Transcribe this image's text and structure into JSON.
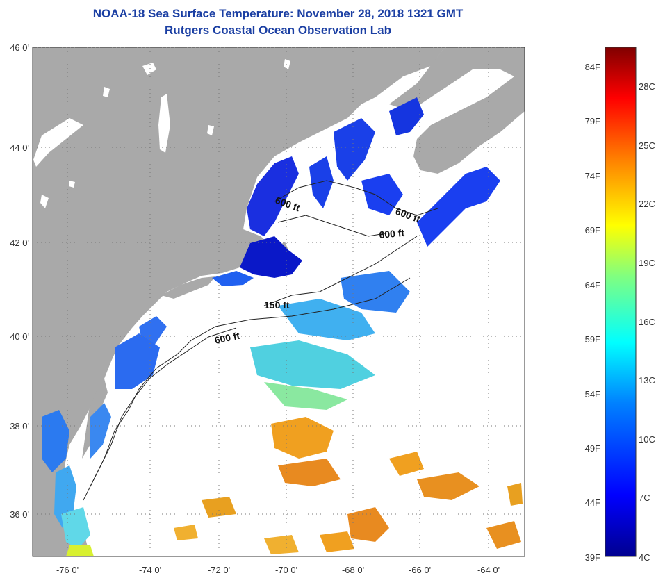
{
  "title": "NOAA-18 Sea Surface Temperature:  November 28, 2018 1321 GMT",
  "subtitle": "Rutgers Coastal Ocean Observation Lab",
  "map": {
    "lat_labels": [
      "46 0'",
      "44 0'",
      "42 0'",
      "40 0'",
      "38 0'",
      "36 0'"
    ],
    "lon_labels": [
      "-76 0'",
      "-74 0'",
      "-72 0'",
      "-70 0'",
      "-68 0'",
      "-66 0'",
      "-64 0'"
    ],
    "contour_labels": [
      "600 ft",
      "600 ft",
      "600 ft",
      "150 ft",
      "600 ft"
    ],
    "colors": {
      "land": "#a9a9a9",
      "ocean": "#ffffff",
      "grid": "#666666"
    }
  },
  "colorbar": {
    "fahrenheit": [
      "84F",
      "79F",
      "74F",
      "69F",
      "64F",
      "59F",
      "54F",
      "49F",
      "44F",
      "39F"
    ],
    "celsius": [
      "28C",
      "25C",
      "22C",
      "19C",
      "16C",
      "13C",
      "10C",
      "7C",
      "4C"
    ],
    "gradient": [
      "#00008f",
      "#0000ff",
      "#0080ff",
      "#00ffff",
      "#80ff80",
      "#ffff00",
      "#ff8000",
      "#ff0000",
      "#800000"
    ]
  }
}
